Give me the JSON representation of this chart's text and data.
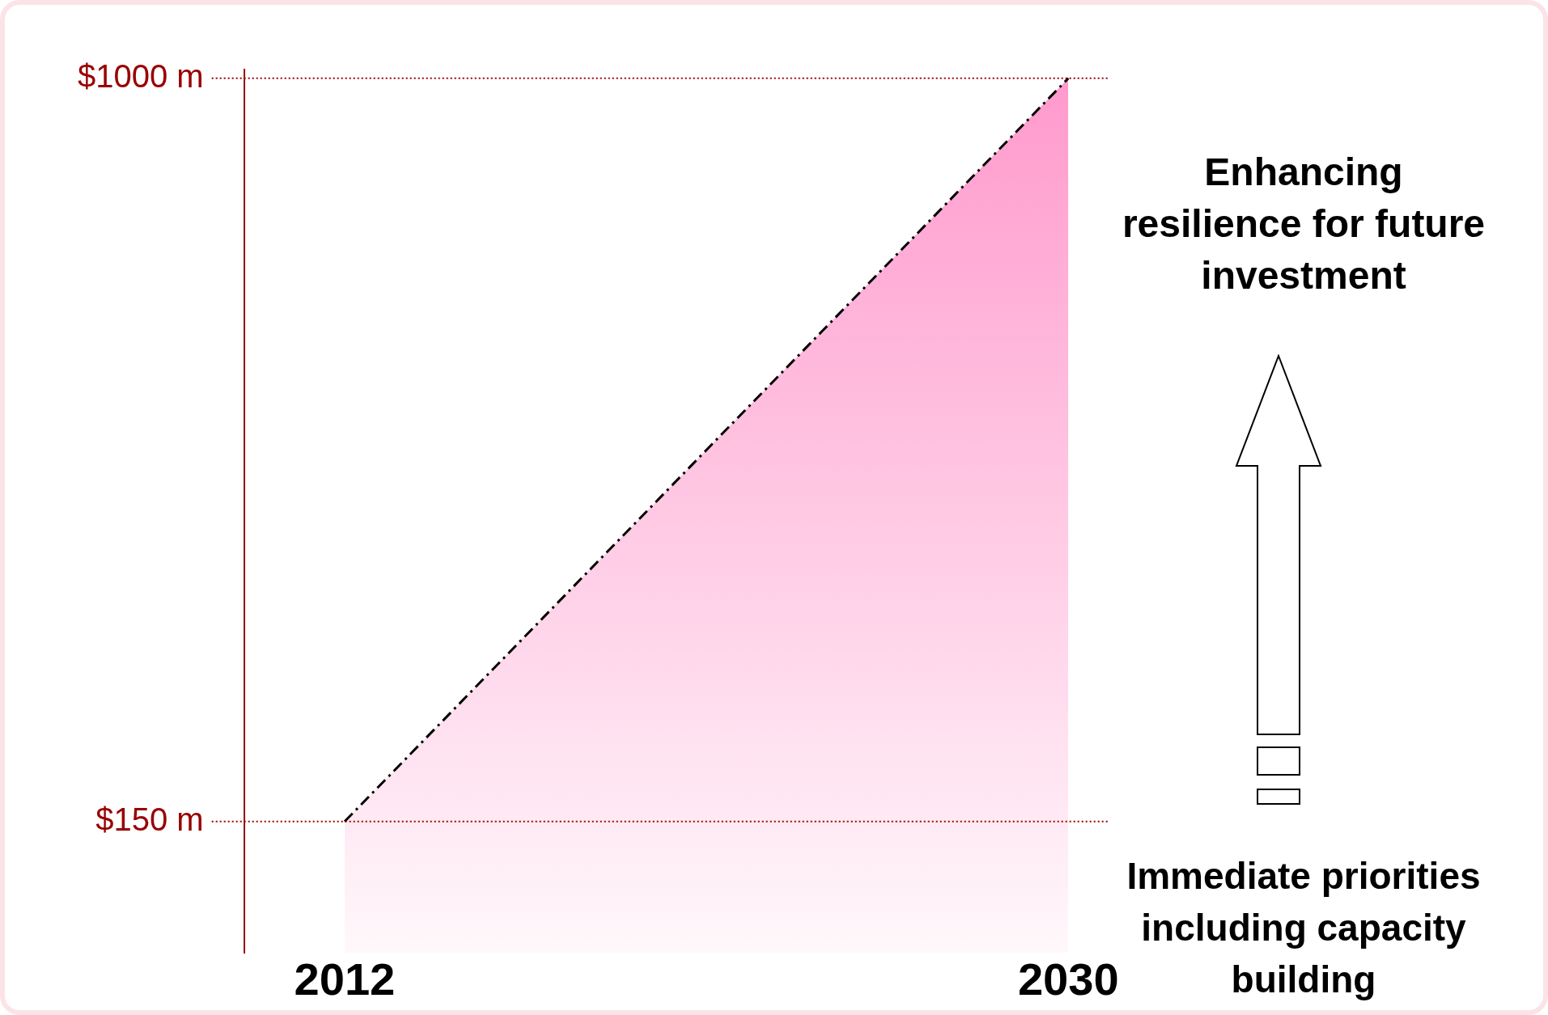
{
  "chart_data": {
    "type": "area",
    "x": [
      2012,
      2030
    ],
    "values": [
      150,
      1000
    ],
    "color": "#ff99cc",
    "xlim": [
      2009.5,
      2031
    ],
    "xticks": [
      2012,
      2030
    ],
    "ylim": [
      0,
      1010
    ],
    "yticks": [
      {
        "value": 150,
        "label": "$150 m"
      },
      {
        "value": 1000,
        "label": "$1000 m"
      }
    ],
    "line_style": "dashed",
    "marker": "none",
    "grid": false,
    "legend": false,
    "ref_lines": [
      {
        "axis": "y",
        "value": 150,
        "label": null,
        "color": "#990000",
        "line_style": "dotted"
      },
      {
        "axis": "y",
        "value": 1000,
        "label": null,
        "color": "#990000",
        "line_style": "dotted"
      }
    ],
    "annotations": [
      "Enhancing resilience for future investment",
      "Immediate priorities including capacity building"
    ]
  }
}
